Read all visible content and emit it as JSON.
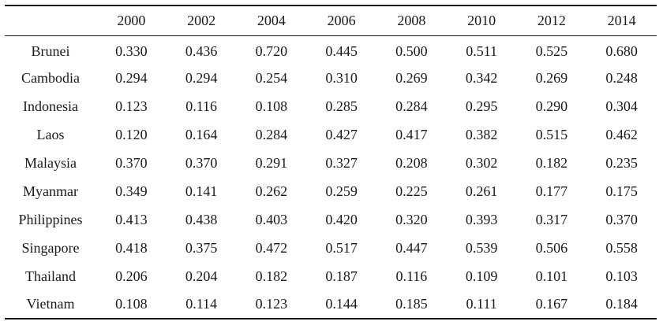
{
  "table": {
    "corner": "",
    "years": [
      "2000",
      "2002",
      "2004",
      "2006",
      "2008",
      "2010",
      "2012",
      "2014"
    ],
    "rows": [
      {
        "country": "Brunei",
        "values": [
          "0.330",
          "0.436",
          "0.720",
          "0.445",
          "0.500",
          "0.511",
          "0.525",
          "0.680"
        ]
      },
      {
        "country": "Cambodia",
        "values": [
          "0.294",
          "0.294",
          "0.254",
          "0.310",
          "0.269",
          "0.342",
          "0.269",
          "0.248"
        ]
      },
      {
        "country": "Indonesia",
        "values": [
          "0.123",
          "0.116",
          "0.108",
          "0.285",
          "0.284",
          "0.295",
          "0.290",
          "0.304"
        ]
      },
      {
        "country": "Laos",
        "values": [
          "0.120",
          "0.164",
          "0.284",
          "0.427",
          "0.417",
          "0.382",
          "0.515",
          "0.462"
        ]
      },
      {
        "country": "Malaysia",
        "values": [
          "0.370",
          "0.370",
          "0.291",
          "0.327",
          "0.208",
          "0.302",
          "0.182",
          "0.235"
        ]
      },
      {
        "country": "Myanmar",
        "values": [
          "0.349",
          "0.141",
          "0.262",
          "0.259",
          "0.225",
          "0.261",
          "0.177",
          "0.175"
        ]
      },
      {
        "country": "Philippines",
        "values": [
          "0.413",
          "0.438",
          "0.403",
          "0.420",
          "0.320",
          "0.393",
          "0.317",
          "0.370"
        ]
      },
      {
        "country": "Singapore",
        "values": [
          "0.418",
          "0.375",
          "0.472",
          "0.517",
          "0.447",
          "0.539",
          "0.506",
          "0.558"
        ]
      },
      {
        "country": "Thailand",
        "values": [
          "0.206",
          "0.204",
          "0.182",
          "0.187",
          "0.116",
          "0.109",
          "0.101",
          "0.103"
        ]
      },
      {
        "country": "Vietnam",
        "values": [
          "0.108",
          "0.114",
          "0.123",
          "0.144",
          "0.185",
          "0.111",
          "0.167",
          "0.184"
        ]
      }
    ]
  }
}
